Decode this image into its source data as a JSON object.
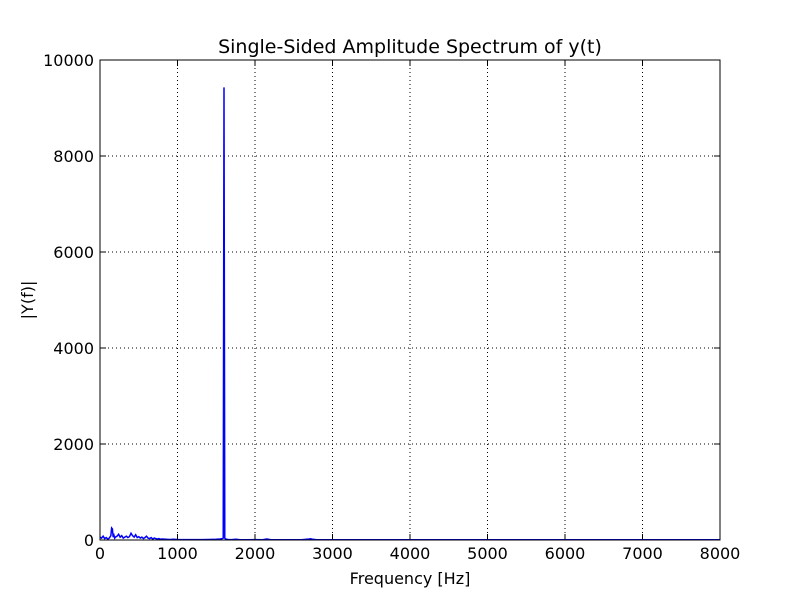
{
  "chart_data": {
    "type": "line",
    "title": "Single-Sided Amplitude Spectrum of y(t)",
    "xlabel": "Frequency [Hz]",
    "ylabel": "|Y(f)|",
    "xlim": [
      0,
      8000
    ],
    "ylim": [
      0,
      10000
    ],
    "grid": true,
    "x_ticks": [
      "0",
      "1000",
      "2000",
      "3000",
      "4000",
      "5000",
      "6000",
      "7000",
      "8000"
    ],
    "y_ticks": [
      "0",
      "2000",
      "4000",
      "6000",
      "8000",
      "10000"
    ],
    "series": [
      {
        "color": "#0000ff",
        "x": [
          0,
          20,
          40,
          60,
          80,
          100,
          120,
          140,
          150,
          160,
          170,
          180,
          190,
          200,
          220,
          240,
          260,
          280,
          300,
          320,
          340,
          360,
          380,
          400,
          420,
          440,
          460,
          480,
          500,
          520,
          540,
          560,
          580,
          600,
          620,
          640,
          660,
          680,
          700,
          720,
          740,
          760,
          780,
          800,
          850,
          900,
          950,
          1000,
          1100,
          1200,
          1300,
          1400,
          1500,
          1550,
          1580,
          1590,
          1600,
          1610,
          1620,
          1650,
          1700,
          1750,
          1800,
          1900,
          2000,
          2100,
          2150,
          2200,
          2300,
          2400,
          2500,
          2600,
          2700,
          2720,
          2740,
          2800,
          2900,
          3000,
          3500,
          4000,
          4500,
          5000,
          5500,
          6000,
          6500,
          7000,
          7500,
          8000
        ],
        "y": [
          60,
          40,
          80,
          30,
          50,
          20,
          40,
          90,
          250,
          230,
          60,
          100,
          40,
          60,
          80,
          120,
          60,
          90,
          40,
          60,
          80,
          50,
          70,
          140,
          90,
          60,
          110,
          50,
          70,
          40,
          60,
          30,
          50,
          80,
          40,
          30,
          50,
          20,
          40,
          30,
          20,
          30,
          15,
          20,
          15,
          10,
          15,
          10,
          8,
          8,
          8,
          10,
          15,
          20,
          30,
          40,
          9430,
          40,
          20,
          10,
          8,
          15,
          8,
          6,
          8,
          6,
          20,
          8,
          6,
          6,
          6,
          6,
          20,
          25,
          15,
          6,
          5,
          5,
          5,
          5,
          5,
          5,
          5,
          5,
          5,
          5,
          5,
          5
        ]
      }
    ]
  }
}
